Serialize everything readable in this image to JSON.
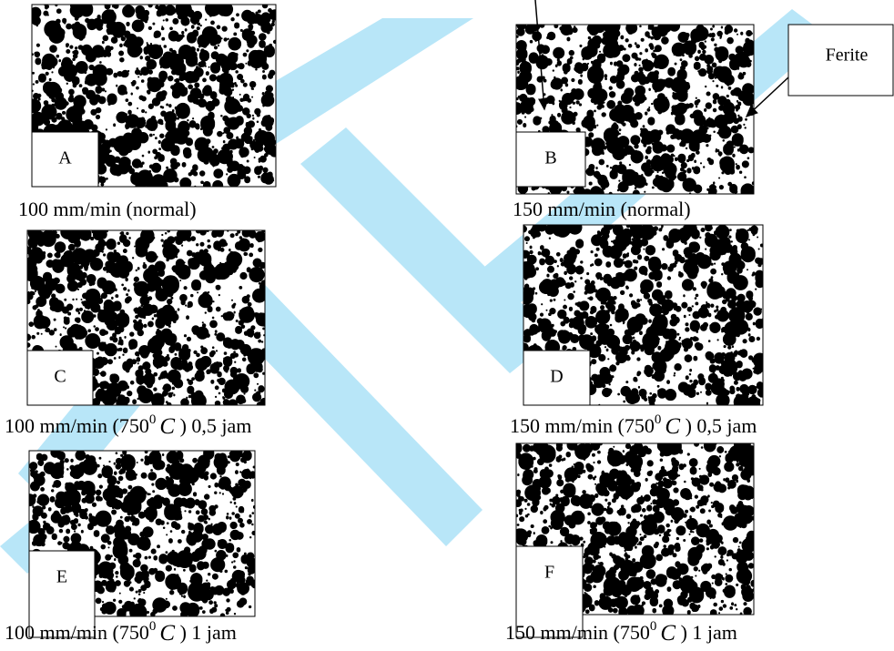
{
  "panels": [
    {
      "label": "A",
      "caption": [
        "100 mm/min (normal)"
      ]
    },
    {
      "label": "B",
      "caption": [
        "150 mm/min (normal)"
      ]
    },
    {
      "label": "C",
      "caption": [
        "100 mm/min (750",
        "0",
        "C",
        " ) 0,5 jam"
      ]
    },
    {
      "label": "D",
      "caption": [
        "150 mm/min (750",
        "0",
        "C",
        " ) 0,5 jam"
      ]
    },
    {
      "label": "E",
      "caption": [
        "100 mm/min (750",
        "0",
        "C",
        " ) 1 jam"
      ]
    },
    {
      "label": "F",
      "caption": [
        "150 mm/min (750",
        "0",
        "C",
        " ) 1 jam"
      ]
    }
  ],
  "annotation": "Ferite"
}
